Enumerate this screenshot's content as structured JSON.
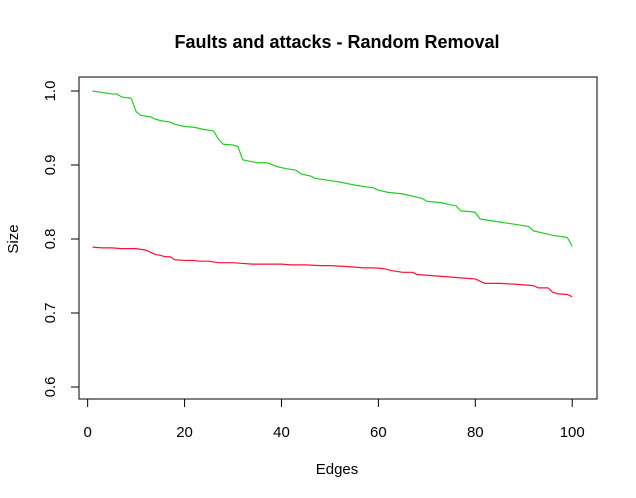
{
  "chart_data": {
    "type": "line",
    "title": "Faults and attacks - Random Removal",
    "xlabel": "Edges",
    "ylabel": "Size",
    "xlim": [
      1,
      100
    ],
    "ylim": [
      0.6,
      1.0
    ],
    "x_ticks": [
      {
        "value": 0,
        "label": "0"
      },
      {
        "value": 20,
        "label": "20"
      },
      {
        "value": 40,
        "label": "40"
      },
      {
        "value": 60,
        "label": "60"
      },
      {
        "value": 80,
        "label": "80"
      },
      {
        "value": 100,
        "label": "100"
      }
    ],
    "y_ticks": [
      {
        "value": 0.6,
        "label": "0.6"
      },
      {
        "value": 0.7,
        "label": "0.7"
      },
      {
        "value": 0.8,
        "label": "0.8"
      },
      {
        "value": 0.9,
        "label": "0.9"
      },
      {
        "value": 1.0,
        "label": "1.0"
      }
    ],
    "grid": false,
    "legend": "none",
    "series": [
      {
        "color": "#22cc22",
        "points": [
          [
            1,
            1.0
          ],
          [
            5,
            0.996
          ],
          [
            6,
            0.996
          ],
          [
            7,
            0.992
          ],
          [
            8,
            0.991
          ],
          [
            9,
            0.99
          ],
          [
            10,
            0.972
          ],
          [
            11,
            0.967
          ],
          [
            13,
            0.965
          ],
          [
            14,
            0.962
          ],
          [
            15,
            0.96
          ],
          [
            17,
            0.958
          ],
          [
            18,
            0.955
          ],
          [
            20,
            0.952
          ],
          [
            22,
            0.951
          ],
          [
            24,
            0.948
          ],
          [
            26,
            0.946
          ],
          [
            27,
            0.935
          ],
          [
            28,
            0.928
          ],
          [
            30,
            0.927
          ],
          [
            31,
            0.925
          ],
          [
            32,
            0.907
          ],
          [
            35,
            0.903
          ],
          [
            37,
            0.903
          ],
          [
            39,
            0.898
          ],
          [
            41,
            0.895
          ],
          [
            43,
            0.893
          ],
          [
            44,
            0.888
          ],
          [
            46,
            0.885
          ],
          [
            47,
            0.882
          ],
          [
            50,
            0.879
          ],
          [
            52,
            0.877
          ],
          [
            55,
            0.873
          ],
          [
            57,
            0.871
          ],
          [
            59,
            0.869
          ],
          [
            60,
            0.866
          ],
          [
            62,
            0.863
          ],
          [
            65,
            0.861
          ],
          [
            67,
            0.858
          ],
          [
            69,
            0.855
          ],
          [
            70,
            0.851
          ],
          [
            73,
            0.849
          ],
          [
            75,
            0.846
          ],
          [
            76,
            0.845
          ],
          [
            77,
            0.838
          ],
          [
            79,
            0.837
          ],
          [
            80,
            0.836
          ],
          [
            81,
            0.827
          ],
          [
            83,
            0.825
          ],
          [
            85,
            0.823
          ],
          [
            87,
            0.821
          ],
          [
            89,
            0.819
          ],
          [
            91,
            0.817
          ],
          [
            92,
            0.811
          ],
          [
            94,
            0.808
          ],
          [
            96,
            0.805
          ],
          [
            99,
            0.802
          ],
          [
            100,
            0.79
          ]
        ]
      },
      {
        "color": "#ff1133",
        "points": [
          [
            1,
            0.789
          ],
          [
            3,
            0.788
          ],
          [
            5,
            0.788
          ],
          [
            7,
            0.787
          ],
          [
            10,
            0.787
          ],
          [
            12,
            0.785
          ],
          [
            13,
            0.782
          ],
          [
            14,
            0.779
          ],
          [
            15,
            0.778
          ],
          [
            16,
            0.776
          ],
          [
            17,
            0.776
          ],
          [
            18,
            0.772
          ],
          [
            20,
            0.771
          ],
          [
            22,
            0.771
          ],
          [
            23,
            0.77
          ],
          [
            25,
            0.77
          ],
          [
            27,
            0.768
          ],
          [
            30,
            0.768
          ],
          [
            32,
            0.767
          ],
          [
            34,
            0.766
          ],
          [
            36,
            0.766
          ],
          [
            38,
            0.766
          ],
          [
            40,
            0.766
          ],
          [
            42,
            0.765
          ],
          [
            45,
            0.765
          ],
          [
            48,
            0.764
          ],
          [
            50,
            0.764
          ],
          [
            53,
            0.763
          ],
          [
            55,
            0.762
          ],
          [
            57,
            0.761
          ],
          [
            59,
            0.761
          ],
          [
            61,
            0.76
          ],
          [
            63,
            0.757
          ],
          [
            65,
            0.755
          ],
          [
            67,
            0.755
          ],
          [
            68,
            0.752
          ],
          [
            70,
            0.751
          ],
          [
            72,
            0.75
          ],
          [
            74,
            0.749
          ],
          [
            76,
            0.748
          ],
          [
            78,
            0.747
          ],
          [
            80,
            0.746
          ],
          [
            82,
            0.74
          ],
          [
            85,
            0.74
          ],
          [
            88,
            0.739
          ],
          [
            90,
            0.738
          ],
          [
            92,
            0.737
          ],
          [
            93,
            0.734
          ],
          [
            95,
            0.734
          ],
          [
            96,
            0.728
          ],
          [
            97,
            0.726
          ],
          [
            99,
            0.725
          ],
          [
            100,
            0.722
          ]
        ]
      }
    ]
  }
}
